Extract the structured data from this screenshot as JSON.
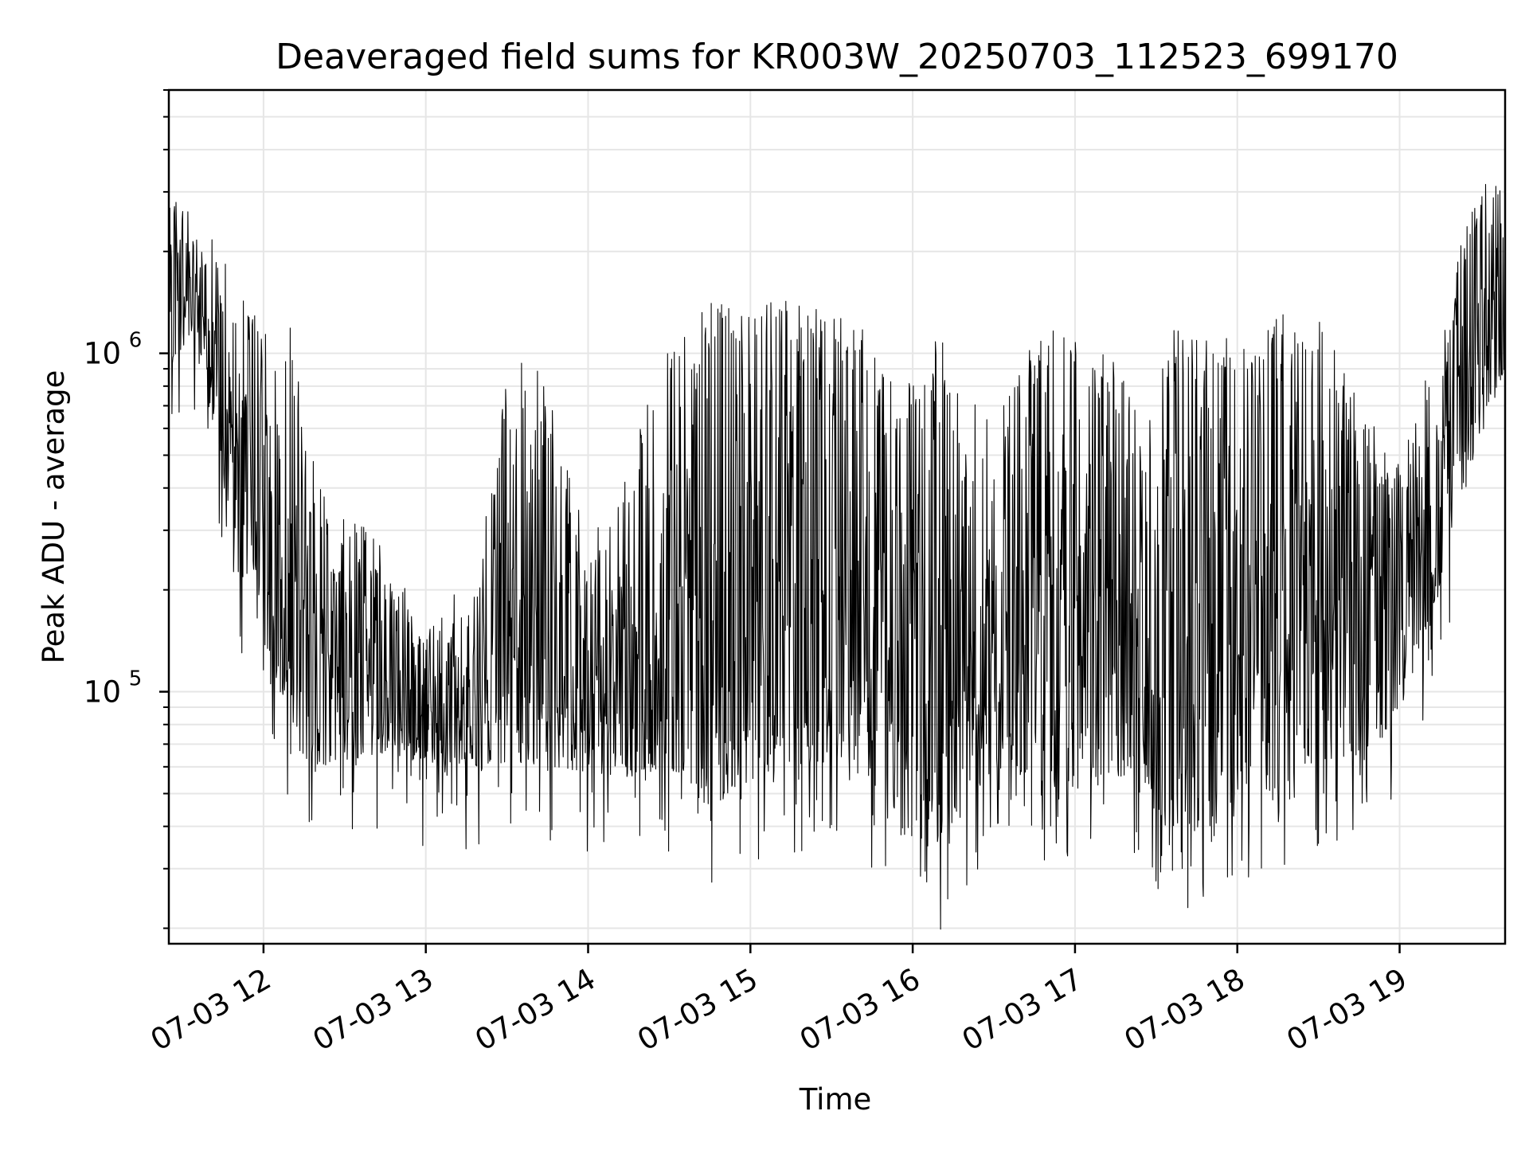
{
  "chart_data": {
    "type": "line",
    "title": "Deaveraged field sums for KR003W_20250703_112523_699170",
    "xlabel": "Time",
    "ylabel": "Peak ADU - average",
    "x_axis": "datetime",
    "y_scale": "log",
    "xlim": [
      "2025-07-03 11:25",
      "2025-07-03 19:39"
    ],
    "ylim": [
      18000,
      6000000
    ],
    "x_ticks": [
      "2025-07-03 12:00",
      "2025-07-03 13:00",
      "2025-07-03 14:00",
      "2025-07-03 15:00",
      "2025-07-03 16:00",
      "2025-07-03 17:00",
      "2025-07-03 18:00",
      "2025-07-03 19:00"
    ],
    "x_tick_labels": [
      "07-03 12",
      "07-03 13",
      "07-03 14",
      "07-03 15",
      "07-03 16",
      "07-03 17",
      "07-03 18",
      "07-03 19"
    ],
    "y_ticks": [
      100000,
      1000000
    ],
    "y_tick_labels": [
      {
        "base": "10",
        "exp": "5"
      },
      {
        "base": "10",
        "exp": "6"
      }
    ],
    "grid": true,
    "grid_minor": true,
    "line_color": "#000000",
    "series_envelope": {
      "time": [
        "2025-07-03 11:25",
        "2025-07-03 11:35",
        "2025-07-03 11:50",
        "2025-07-03 12:10",
        "2025-07-03 12:20",
        "2025-07-03 12:40",
        "2025-07-03 13:00",
        "2025-07-03 13:20",
        "2025-07-03 13:30",
        "2025-07-03 13:45",
        "2025-07-03 14:00",
        "2025-07-03 14:15",
        "2025-07-03 14:30",
        "2025-07-03 14:45",
        "2025-07-03 15:00",
        "2025-07-03 15:20",
        "2025-07-03 15:40",
        "2025-07-03 15:55",
        "2025-07-03 16:10",
        "2025-07-03 16:30",
        "2025-07-03 16:45",
        "2025-07-03 17:00",
        "2025-07-03 17:15",
        "2025-07-03 17:25",
        "2025-07-03 17:35",
        "2025-07-03 17:50",
        "2025-07-03 18:10",
        "2025-07-03 18:30",
        "2025-07-03 18:45",
        "2025-07-03 19:00",
        "2025-07-03 19:15",
        "2025-07-03 19:30",
        "2025-07-03 19:39"
      ],
      "low": [
        900000,
        1200000,
        250000,
        80000,
        60000,
        65000,
        62000,
        60000,
        62000,
        60000,
        58000,
        56000,
        60000,
        45000,
        55000,
        60000,
        65000,
        35000,
        35000,
        60000,
        55000,
        50000,
        55000,
        60000,
        35000,
        45000,
        50000,
        60000,
        65000,
        80000,
        200000,
        600000,
        900000
      ],
      "high": [
        2500000,
        2200000,
        1400000,
        1000000,
        350000,
        250000,
        150000,
        200000,
        900000,
        700000,
        250000,
        400000,
        1100000,
        1200000,
        1200000,
        1200000,
        1100000,
        700000,
        950000,
        500000,
        1000000,
        1000000,
        800000,
        500000,
        1000000,
        1000000,
        1100000,
        1100000,
        600000,
        400000,
        1000000,
        3000000,
        2500000
      ]
    }
  }
}
